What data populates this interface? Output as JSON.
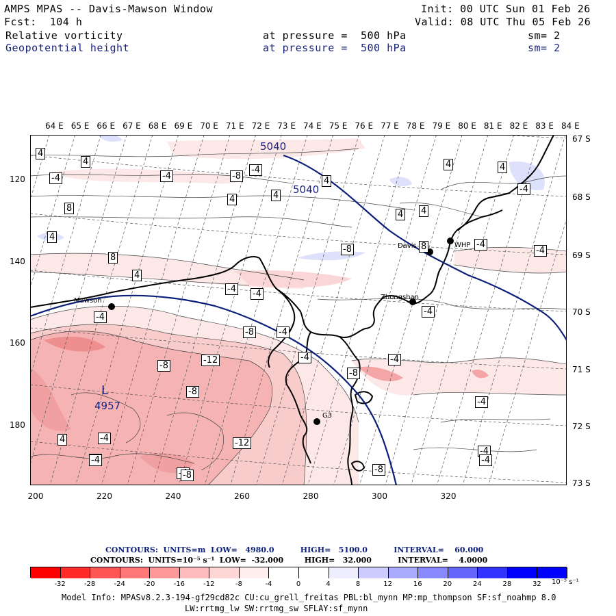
{
  "header": {
    "title": "AMPS MPAS -- Davis-Mawson Window",
    "forecast": "Fcst:  104 h",
    "init": "Init: 00 UTC Sun 01 Feb 26",
    "valid": "Valid: 08 UTC Thu 05 Feb 26",
    "field1_name": "Relative vorticity",
    "field1_level": "at pressure =  500 hPa",
    "field1_sm": "sm= 2",
    "field2_name": "Geopotential height",
    "field2_level": "at pressure =  500 hPa",
    "field2_sm": "sm= 2"
  },
  "map": {
    "lon_labels": [
      "64 E",
      "65 E",
      "66 E",
      "67 E",
      "68 E",
      "69 E",
      "70 E",
      "71 E",
      "72 E",
      "73 E",
      "74 E",
      "75 E",
      "76 E",
      "77 E",
      "78 E",
      "79 E",
      "80 E",
      "81 E",
      "82 E",
      "83 E",
      "84 E"
    ],
    "lat_labels": [
      "67 S",
      "68 S",
      "69 S",
      "70 S",
      "71 S",
      "72 S",
      "73 S"
    ],
    "x_ticks": [
      "200",
      "220",
      "240",
      "260",
      "280",
      "300",
      "320"
    ],
    "y_ticks": [
      "120",
      "140",
      "160",
      "180"
    ],
    "stations": [
      {
        "name": "Mawson"
      },
      {
        "name": "Davis"
      },
      {
        "name": "WHP"
      },
      {
        "name": "Zhongshan"
      },
      {
        "name": "G3"
      }
    ],
    "low_center": {
      "letter": "L",
      "value": "4957"
    },
    "height_labels": [
      "5040",
      "5040"
    ],
    "vorticity_labels": [
      "4",
      "4",
      "-4",
      "-4",
      "-8",
      "4",
      "4",
      "4",
      "-4",
      "8",
      "4",
      "4",
      "4",
      "4",
      "-8",
      "8",
      "8",
      "-4",
      "4",
      "-4",
      "-4",
      "-4",
      "-4",
      "-4",
      "-8",
      "-4",
      "-8",
      "-12",
      "-8",
      "-4",
      "-8",
      "-4",
      "4",
      "-4",
      "-12",
      "-8",
      "-4",
      "-8",
      "-4",
      "-4",
      "-4",
      "4",
      "-4",
      "-8",
      "-4"
    ],
    "colors": {
      "height_contour": "#0b1f7a",
      "coast": "#000000",
      "neg4": "#fde8e8",
      "neg8": "#f9c6c6",
      "neg12": "#f4a0a0",
      "pos4": "#dde1fb"
    }
  },
  "contours_info": {
    "line1": "CONTOURS:  UNITS=m  LOW=   4980.0          HIGH=   5100.0          INTERVAL=    60.000",
    "line2": "CONTOURS:  UNITS=10⁻⁵ s⁻¹  LOW=  -32.000        HIGH=   32.000          INTERVAL=    4.0000"
  },
  "colorbar": {
    "colors": [
      "#ff0000",
      "#ff2a2a",
      "#ff5555",
      "#ff7777",
      "#ff9999",
      "#ffbbbb",
      "#ffd6d6",
      "#ffeeee",
      "#ffffff",
      "#ffffff",
      "#eeeeff",
      "#ccccff",
      "#aaaaff",
      "#8888ff",
      "#6666ff",
      "#3333ff",
      "#0000ff",
      "#0000ff"
    ],
    "ticks": [
      "-32",
      "-28",
      "-24",
      "-20",
      "-16",
      "-12",
      "-8",
      "-4",
      "0",
      "4",
      "8",
      "12",
      "16",
      "20",
      "24",
      "28",
      "32"
    ],
    "unit": "10⁻⁵ s⁻¹"
  },
  "footer": {
    "line1": "Model Info: MPASv8.2.3-194-gf29cd82c CU:cu_grell_freitas PBL:bl_mynn MP:mp_thompson SF:sf_noahmp 8.0",
    "line2": "LW:rrtmg_lw SW:rrtmg_sw SFLAY:sf_mynn"
  }
}
